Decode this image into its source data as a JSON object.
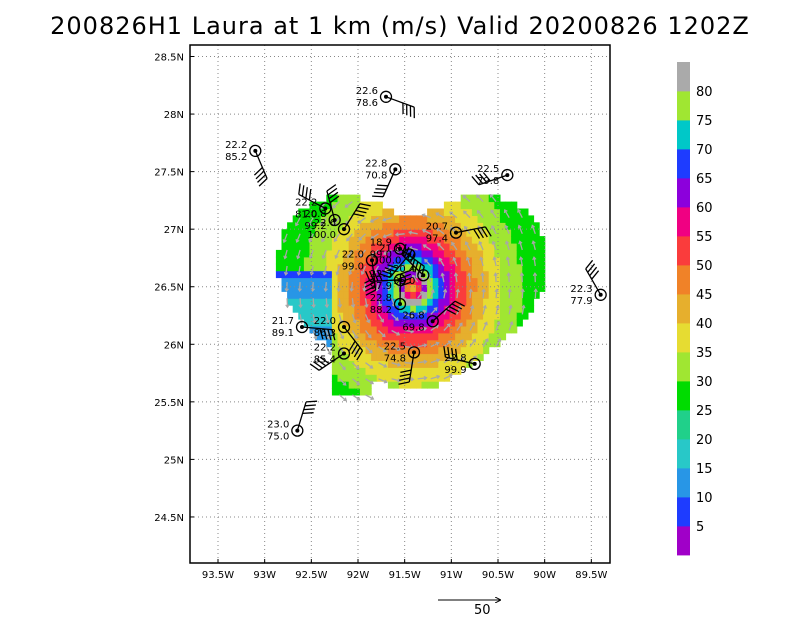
{
  "chart_data": {
    "type": "scatter",
    "title": "200826H1 Laura at 1 km (m/s) Valid 20200826 1202Z",
    "x_ticks": [
      "93.5W",
      "93W",
      "92.5W",
      "92W",
      "91.5W",
      "91W",
      "90.5W",
      "90W",
      "89.5W"
    ],
    "y_ticks": [
      "24.5N",
      "25N",
      "25.5N",
      "26N",
      "26.5N",
      "27N",
      "27.5N",
      "28N",
      "28.5N"
    ],
    "xlim": [
      -93.8,
      -89.3
    ],
    "ylim": [
      24.1,
      28.6
    ],
    "grid": true,
    "colorbar": {
      "labels": [
        "5",
        "10",
        "15",
        "20",
        "25",
        "30",
        "35",
        "40",
        "45",
        "50",
        "55",
        "60",
        "65",
        "70",
        "75",
        "80"
      ],
      "colors": [
        "#a000c8",
        "#1e3cff",
        "#2896e6",
        "#28c8c8",
        "#20d08a",
        "#00dc00",
        "#a0e632",
        "#e6dc32",
        "#e6af2d",
        "#f08228",
        "#fa3c3c",
        "#f00082",
        "#8c00dc",
        "#1e3cff",
        "#00c8c8",
        "#a0e632",
        "#aaaaaa"
      ]
    },
    "reference_vector": {
      "label": "50"
    },
    "stations": [
      {
        "lon": -91.7,
        "lat": 28.15,
        "pressure": "22.6",
        "wind": "78.6"
      },
      {
        "lon": -93.1,
        "lat": 27.68,
        "pressure": "22.2",
        "wind": "85.2"
      },
      {
        "lon": -91.6,
        "lat": 27.52,
        "pressure": "22.8",
        "wind": "70.8"
      },
      {
        "lon": -90.4,
        "lat": 27.47,
        "pressure": "22.5",
        "wind": "79.8"
      },
      {
        "lon": -92.35,
        "lat": 27.18,
        "pressure": "22.2",
        "wind": "81.0"
      },
      {
        "lon": -92.25,
        "lat": 27.08,
        "pressure": "20.8",
        "wind": "99.2"
      },
      {
        "lon": -92.15,
        "lat": 27.0,
        "pressure": "22.6",
        "wind": "100.0"
      },
      {
        "lon": -90.95,
        "lat": 26.97,
        "pressure": "20.7",
        "wind": "97.4"
      },
      {
        "lon": -91.55,
        "lat": 26.83,
        "pressure": "18.9",
        "wind": "99.0"
      },
      {
        "lon": -91.85,
        "lat": 26.73,
        "pressure": "22.0",
        "wind": "99.0"
      },
      {
        "lon": -91.45,
        "lat": 26.78,
        "pressure": "21.8",
        "wind": "100.0"
      },
      {
        "lon": -91.55,
        "lat": 26.56,
        "pressure": "22.3",
        "wind": "97.9"
      },
      {
        "lon": -91.3,
        "lat": 26.6,
        "pressure": "20.4",
        "wind": "95.0"
      },
      {
        "lon": -91.55,
        "lat": 26.35,
        "pressure": "22.8",
        "wind": "88.2"
      },
      {
        "lon": -91.2,
        "lat": 26.2,
        "pressure": "26.8",
        "wind": "69.8"
      },
      {
        "lon": -92.6,
        "lat": 26.15,
        "pressure": "21.7",
        "wind": "89.1"
      },
      {
        "lon": -92.15,
        "lat": 26.15,
        "pressure": "22.0",
        "wind": "86.3"
      },
      {
        "lon": -91.4,
        "lat": 25.93,
        "pressure": "22.5",
        "wind": "74.8"
      },
      {
        "lon": -92.15,
        "lat": 25.92,
        "pressure": "22.2",
        "wind": "85.4"
      },
      {
        "lon": -90.75,
        "lat": 25.83,
        "pressure": "22.8",
        "wind": "99.9"
      },
      {
        "lon": -89.4,
        "lat": 26.43,
        "pressure": "22.3",
        "wind": "77.9"
      },
      {
        "lon": -92.65,
        "lat": 25.25,
        "pressure": "23.0",
        "wind": "75.0"
      }
    ]
  }
}
